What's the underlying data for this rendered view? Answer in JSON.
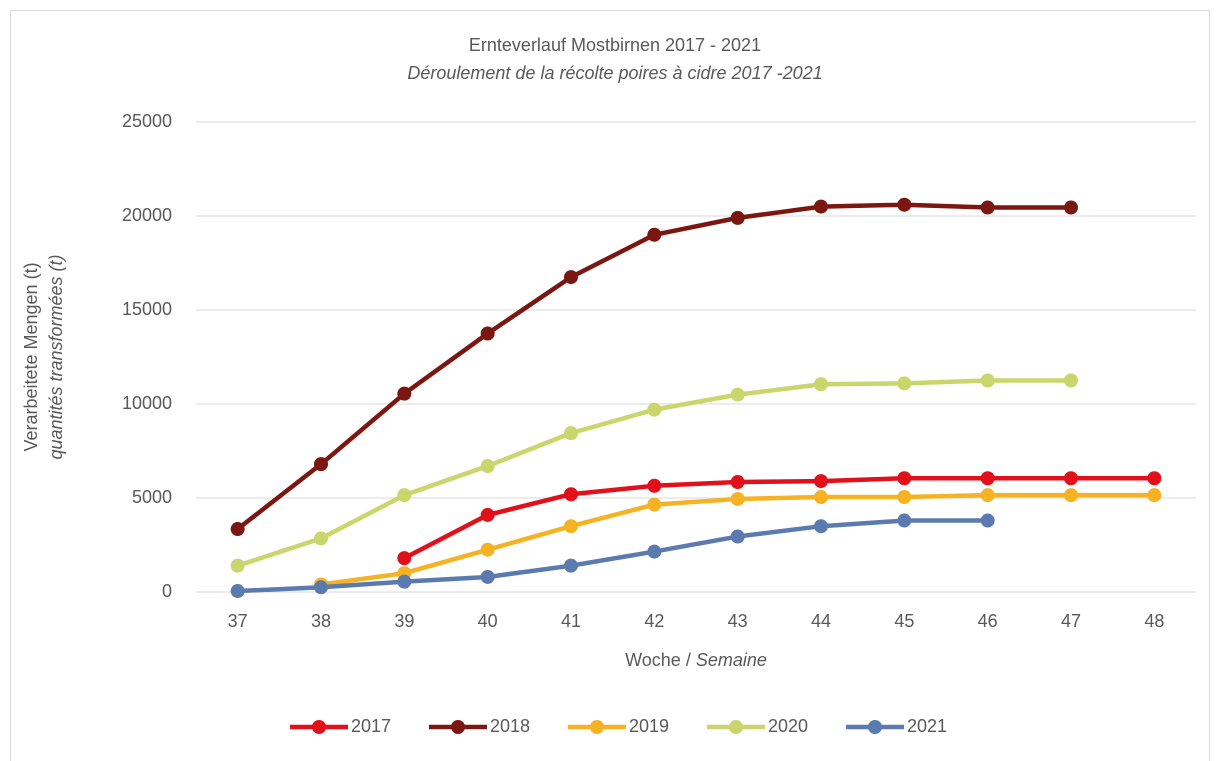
{
  "chart_data": {
    "type": "line",
    "title": "Ernteverlauf Mostbirnen 2017 - 2021",
    "subtitle": "Déroulement de la récolte poires à cidre 2017 -2021",
    "ylabel": [
      "Verarbeitete Mengen (t)",
      "quantités transformées (t)"
    ],
    "xlabel": [
      "Woche / ",
      "Semaine"
    ],
    "categories": [
      "37",
      "38",
      "39",
      "40",
      "41",
      "42",
      "43",
      "44",
      "45",
      "46",
      "47",
      "48"
    ],
    "ylim": [
      0,
      25000
    ],
    "yticks": [
      0,
      5000,
      10000,
      15000,
      20000,
      25000
    ],
    "grid": true,
    "legend": "bottom",
    "series": [
      {
        "name": "2017",
        "color": "#e2101b",
        "values": [
          null,
          null,
          1800,
          4100,
          5200,
          5650,
          5850,
          5900,
          6050,
          6050,
          6050,
          6050
        ]
      },
      {
        "name": "2018",
        "color": "#7b1710",
        "values": [
          3350,
          6800,
          10550,
          13750,
          16750,
          19000,
          19900,
          20500,
          20600,
          20450,
          20450,
          null
        ]
      },
      {
        "name": "2019",
        "color": "#f5b324",
        "values": [
          null,
          400,
          1000,
          2250,
          3500,
          4650,
          4950,
          5050,
          5050,
          5150,
          5150,
          5150
        ]
      },
      {
        "name": "2020",
        "color": "#c9d66b",
        "values": [
          1400,
          2850,
          5150,
          6700,
          8450,
          9700,
          10500,
          11050,
          11100,
          11250,
          11250,
          null
        ]
      },
      {
        "name": "2021",
        "color": "#5b7bb0",
        "values": [
          50,
          250,
          550,
          800,
          1400,
          2150,
          2950,
          3500,
          3800,
          3800,
          null,
          null
        ]
      }
    ]
  }
}
